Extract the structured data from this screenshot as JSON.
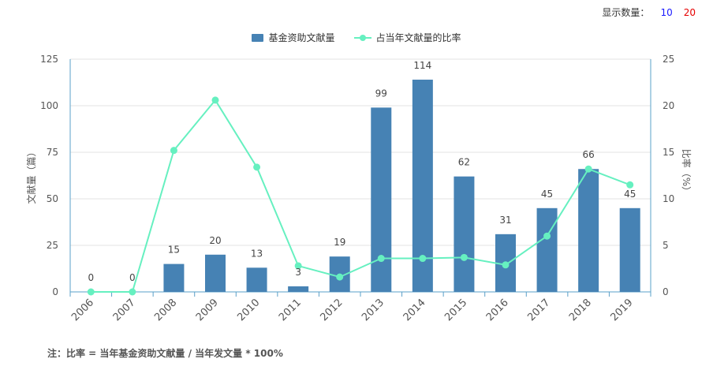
{
  "display_count": {
    "label": "显示数量：",
    "options": [
      "10",
      "20"
    ]
  },
  "chart_data": {
    "type": "bar",
    "categories": [
      "2006",
      "2007",
      "2008",
      "2009",
      "2010",
      "2011",
      "2012",
      "2013",
      "2014",
      "2015",
      "2016",
      "2017",
      "2018",
      "2019"
    ],
    "series": [
      {
        "name": "基金资助文献量",
        "type": "bar",
        "axis": "left",
        "color": "#4682b4",
        "values": [
          0,
          0,
          15,
          20,
          13,
          3,
          19,
          99,
          114,
          62,
          31,
          45,
          66,
          45
        ]
      },
      {
        "name": "占当年文献量的比率",
        "type": "line",
        "axis": "right",
        "color": "#66f0c0",
        "values": [
          0,
          0,
          15.2,
          20.6,
          13.4,
          2.8,
          1.6,
          3.6,
          3.6,
          3.7,
          2.9,
          6.0,
          13.2,
          11.5
        ]
      }
    ],
    "y_left": {
      "label": "文献量（篇）",
      "ylim": [
        0,
        125
      ],
      "ticks": [
        "0",
        "25",
        "50",
        "75",
        "100",
        "125"
      ]
    },
    "y_right": {
      "label": "比率（%）",
      "ylim": [
        0,
        25
      ],
      "ticks": [
        "0",
        "5",
        "10",
        "15",
        "20",
        "25"
      ]
    },
    "grid": true,
    "legend_position": "top-center"
  },
  "footnote": "注：比率 = 当年基金资助文献量 / 当年发文量 * 100%"
}
